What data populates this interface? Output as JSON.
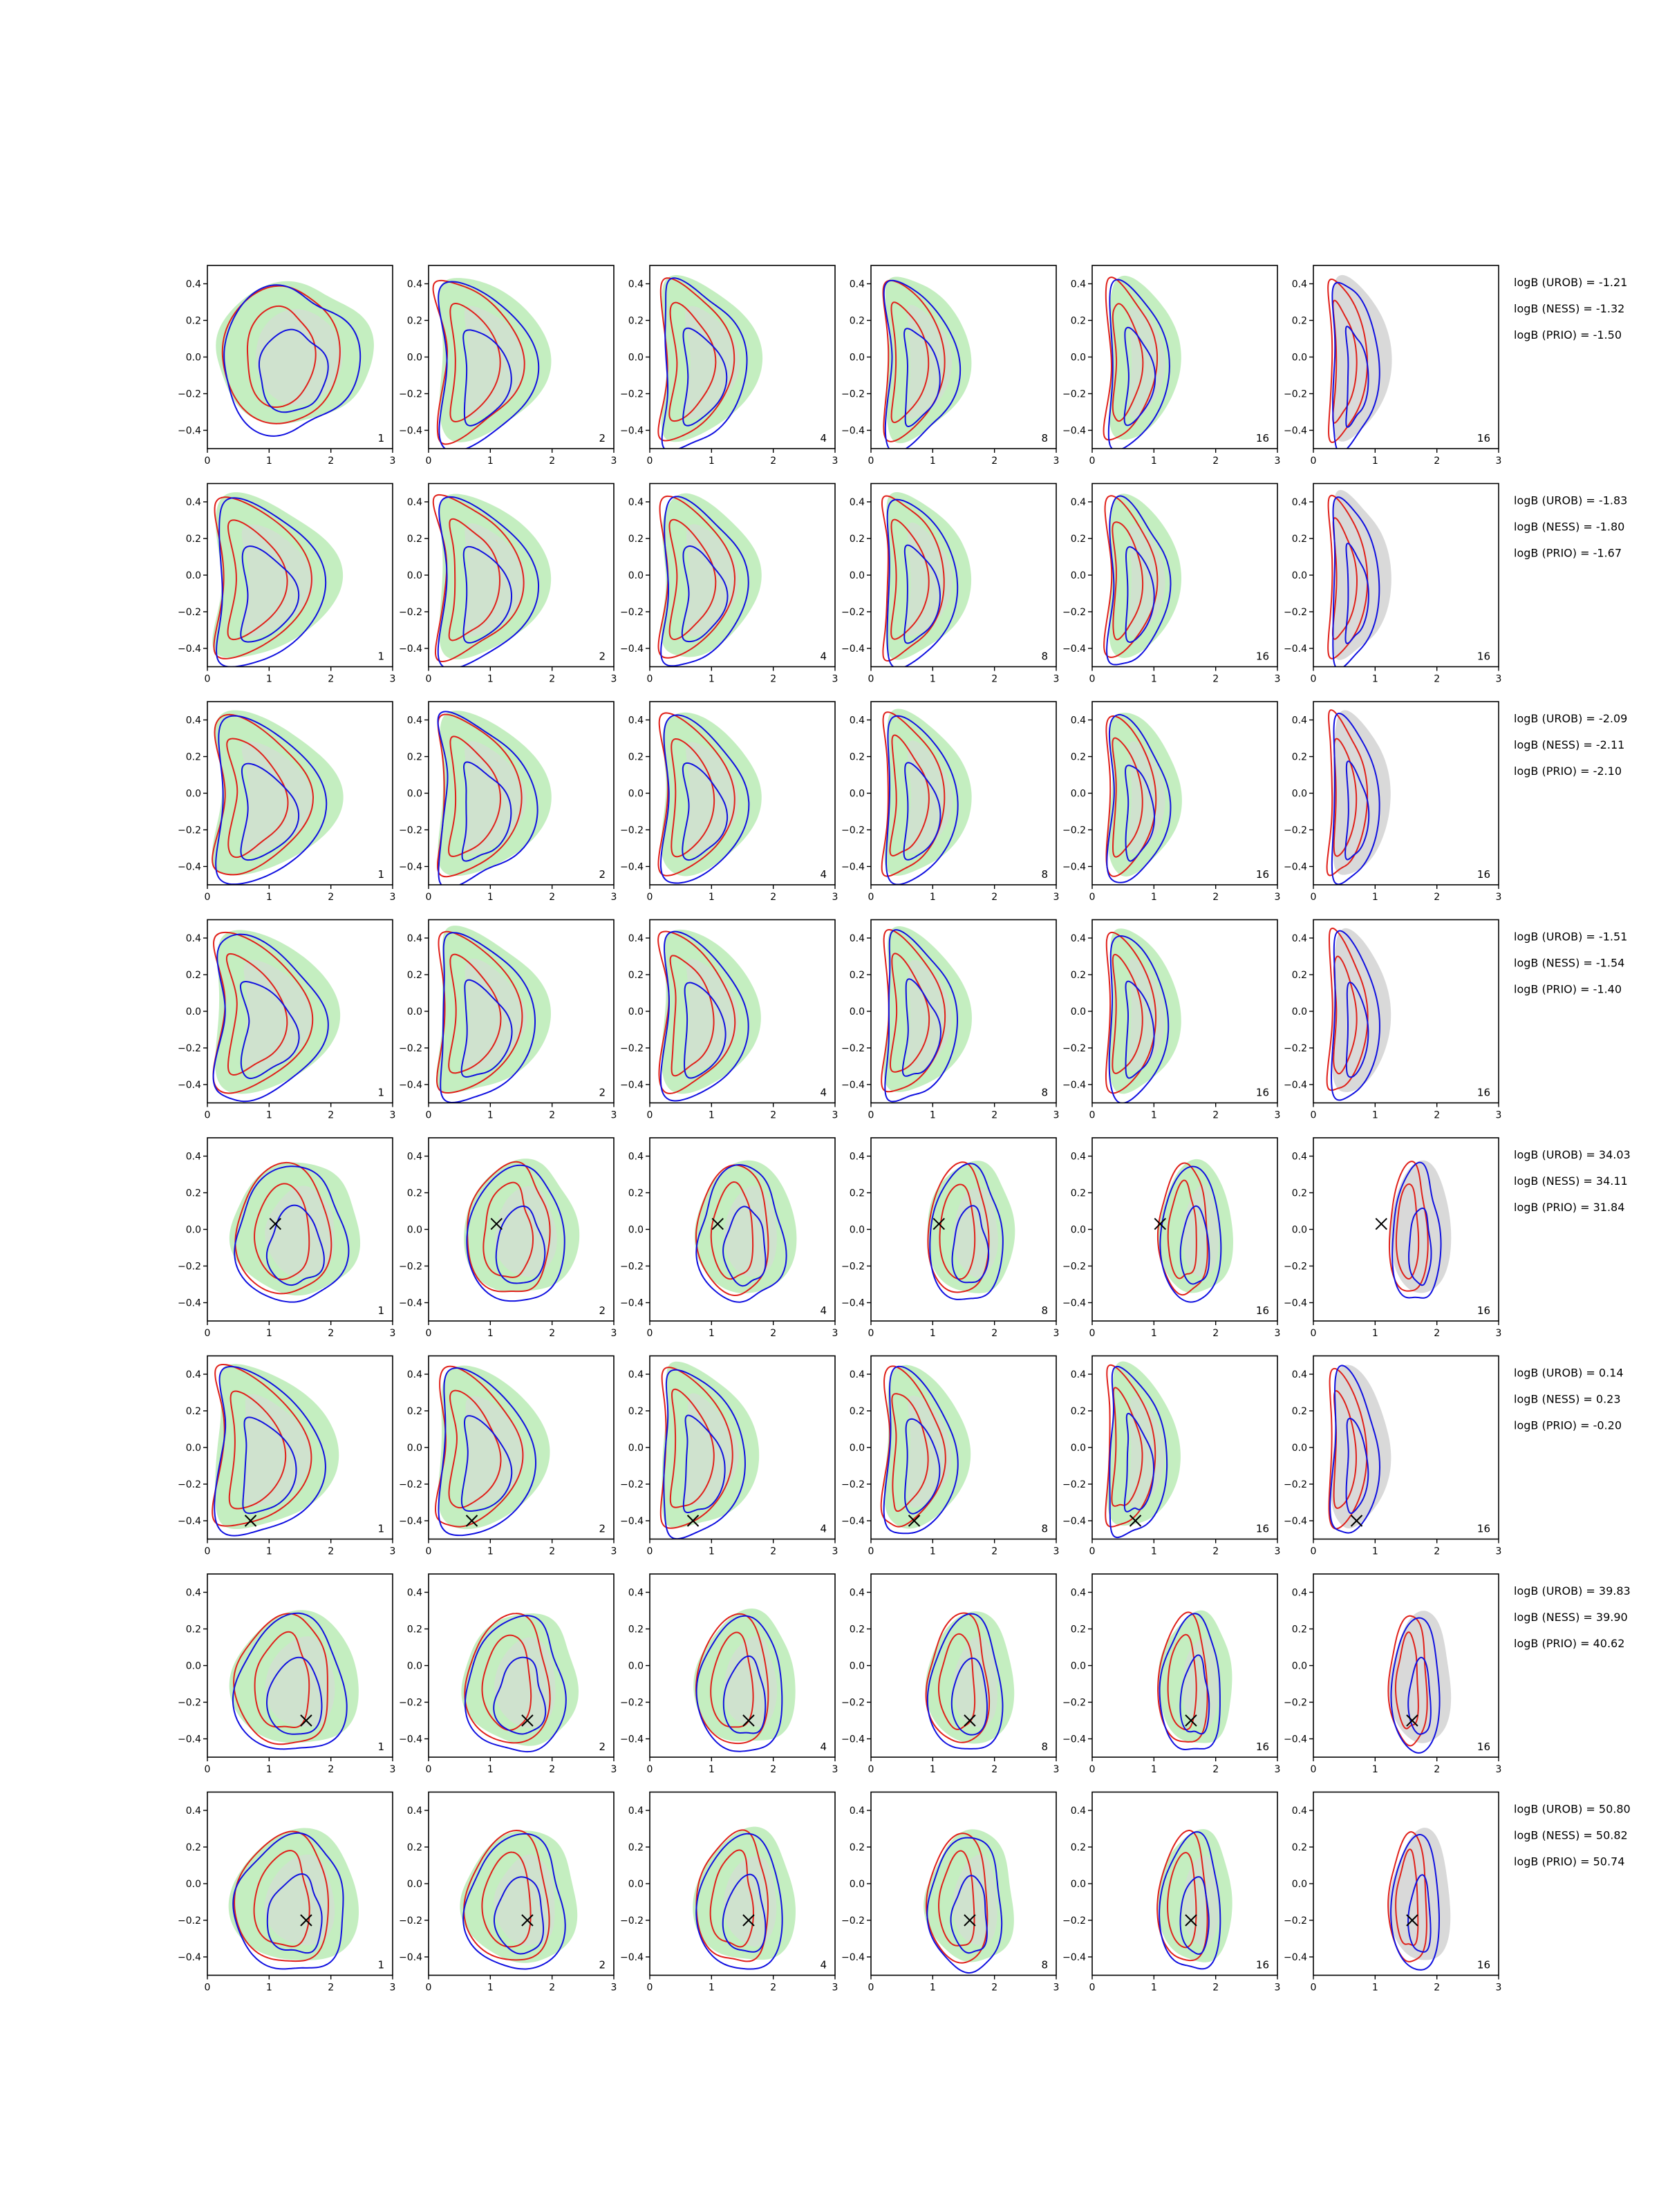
{
  "chart_data": {
    "type": "contour",
    "rows": 8,
    "cols": 6,
    "x_ticks": [
      "0",
      "1",
      "2",
      "3"
    ],
    "y_ticks": [
      "0.4",
      "0.2",
      "0.0",
      "−0.2",
      "−0.4"
    ],
    "xlim": [
      0,
      3
    ],
    "ylim": [
      -0.5,
      0.5
    ],
    "panel_counts": [
      "1",
      "2",
      "4",
      "8",
      "16",
      "16"
    ],
    "colors": {
      "green_fill": "#c4eec0",
      "grey_fill": "#d9d9d9",
      "red_line": "#e0201a",
      "blue_line": "#1010e0",
      "marker": "#000000"
    },
    "panel_types": [
      "green",
      "green",
      "green",
      "green",
      "green",
      "grey"
    ],
    "row_markers": [
      null,
      null,
      null,
      null,
      {
        "x": 1.1,
        "y": 0.03
      },
      {
        "x": 0.7,
        "y": -0.4
      },
      {
        "x": 1.6,
        "y": -0.3
      },
      {
        "x": 1.6,
        "y": -0.2
      }
    ],
    "row_shape_styles": [
      "wide",
      "crescent",
      "crescent",
      "crescent",
      "center",
      "crescent",
      "center",
      "center"
    ],
    "logB": [
      {
        "urob": "logB (UROB) = -1.21",
        "ness": "logB (NESS) = -1.32",
        "prio": "logB (PRIO) = -1.50"
      },
      {
        "urob": "logB (UROB) = -1.83",
        "ness": "logB (NESS) = -1.80",
        "prio": "logB (PRIO) = -1.67"
      },
      {
        "urob": "logB (UROB) = -2.09",
        "ness": "logB (NESS) = -2.11",
        "prio": "logB (PRIO) = -2.10"
      },
      {
        "urob": "logB (UROB) = -1.51",
        "ness": "logB (NESS) = -1.54",
        "prio": "logB (PRIO) = -1.40"
      },
      {
        "urob": "logB (UROB) = 34.03",
        "ness": "logB (NESS) = 34.11",
        "prio": "logB (PRIO) = 31.84"
      },
      {
        "urob": "logB (UROB) = 0.14",
        "ness": "logB (NESS) = 0.23",
        "prio": "logB (PRIO) = -0.20"
      },
      {
        "urob": "logB (UROB) = 39.83",
        "ness": "logB (NESS) = 39.90",
        "prio": "logB (PRIO) = 40.62"
      },
      {
        "urob": "logB (UROB) = 50.80",
        "ness": "logB (NESS) = 50.82",
        "prio": "logB (PRIO) = 50.74"
      }
    ]
  }
}
